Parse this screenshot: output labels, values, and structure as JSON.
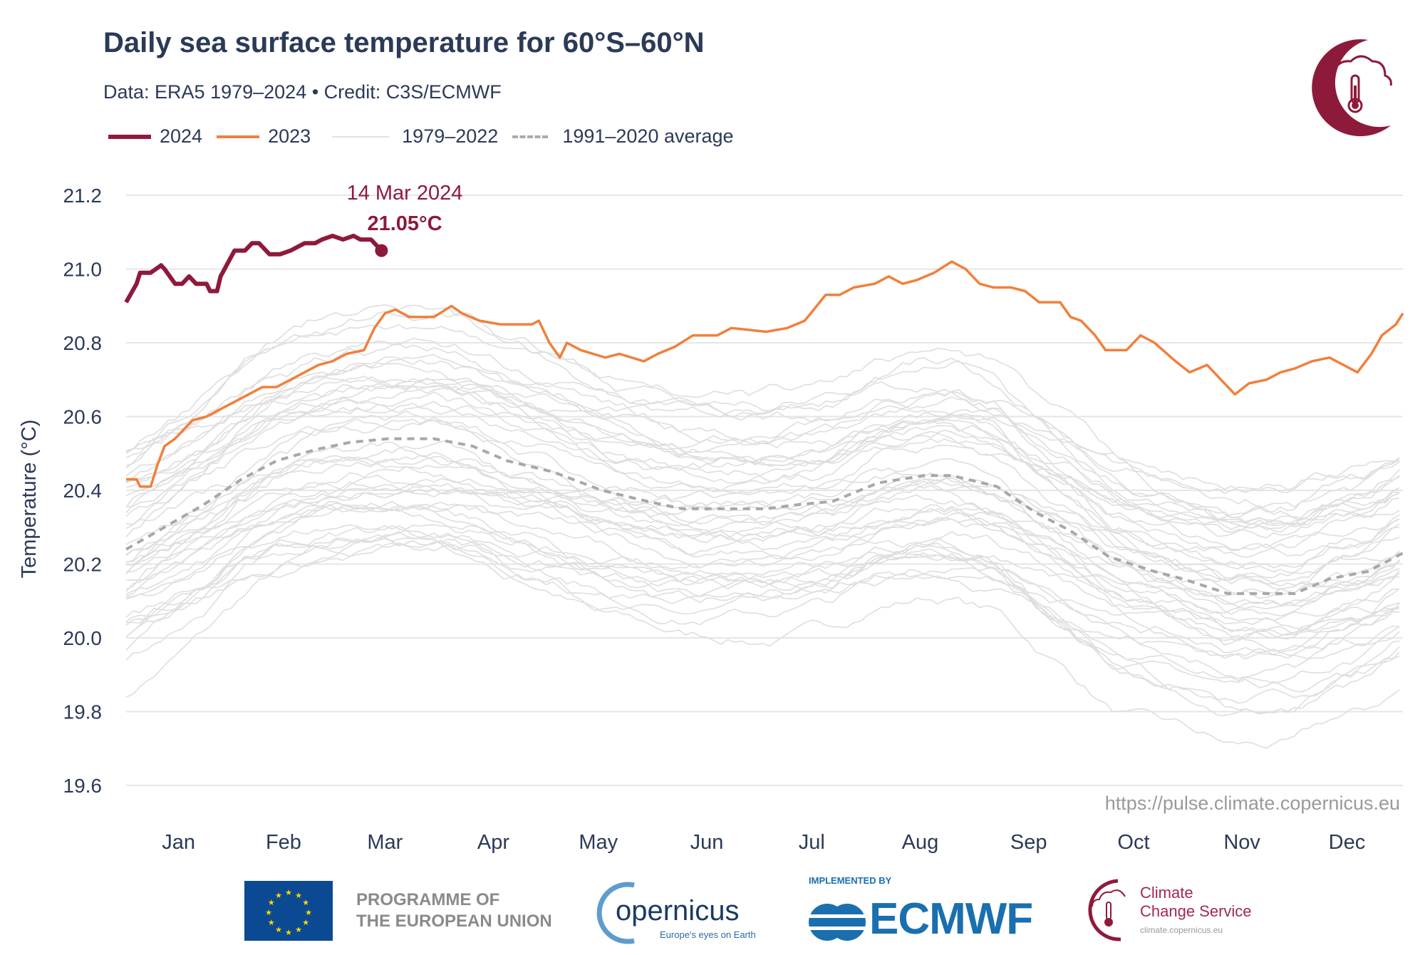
{
  "header": {
    "title": "Daily sea surface temperature for 60°S–60°N",
    "subtitle": "Data: ERA5 1979–2024  •  Credit: C3S/ECMWF",
    "url": "https://pulse.climate.copernicus.eu"
  },
  "colors": {
    "y2024": "#8e1a3b",
    "y2023": "#f0803c",
    "background": "#dedede",
    "average": "#a8a8a8",
    "text": "#2b3a57"
  },
  "logos": {
    "eu_line1": "PROGRAMME OF",
    "eu_line2": "THE EUROPEAN UNION",
    "copernicus": "opernicus",
    "copernicus_tag": "Europe's eyes on Earth",
    "ecmwf_pre": "IMPLEMENTED BY",
    "ecmwf": "ECMWF",
    "c3s_line1": "Climate",
    "c3s_line2": "Change Service",
    "c3s_url": "climate.copernicus.eu"
  },
  "chart_data": {
    "type": "line",
    "title": "Daily sea surface temperature for 60°S–60°N",
    "xlabel": "",
    "ylabel": "Temperature (°C)",
    "xlim": [
      1,
      366
    ],
    "ylim": [
      19.6,
      21.2
    ],
    "yticks": [
      "19.6",
      "19.8",
      "20.0",
      "20.2",
      "20.4",
      "20.6",
      "20.8",
      "21.0",
      "21.2"
    ],
    "ytick_values": [
      19.6,
      19.8,
      20.0,
      20.2,
      20.4,
      20.6,
      20.8,
      21.0,
      21.2
    ],
    "xticks": [
      "Jan",
      "Feb",
      "Mar",
      "Apr",
      "May",
      "Jun",
      "Jul",
      "Aug",
      "Sep",
      "Oct",
      "Nov",
      "Dec"
    ],
    "xtick_days": [
      16,
      46,
      75,
      106,
      136,
      167,
      197,
      228,
      259,
      289,
      320,
      350
    ],
    "grid": true,
    "legend": [
      "2024",
      "2023",
      "1979–2022",
      "1991–2020 average"
    ],
    "annotation": {
      "date": "14 Mar 2024",
      "value_label": "21.05°C",
      "day": 74,
      "value": 21.05
    },
    "series": [
      {
        "name": "2024",
        "points": [
          [
            1,
            20.91
          ],
          [
            4,
            20.96
          ],
          [
            5,
            20.99
          ],
          [
            8,
            20.99
          ],
          [
            11,
            21.01
          ],
          [
            12,
            21.0
          ],
          [
            15,
            20.96
          ],
          [
            17,
            20.96
          ],
          [
            19,
            20.98
          ],
          [
            21,
            20.96
          ],
          [
            24,
            20.96
          ],
          [
            25,
            20.94
          ],
          [
            27,
            20.94
          ],
          [
            28,
            20.98
          ],
          [
            32,
            21.05
          ],
          [
            35,
            21.05
          ],
          [
            37,
            21.07
          ],
          [
            39,
            21.07
          ],
          [
            42,
            21.04
          ],
          [
            45,
            21.04
          ],
          [
            48,
            21.05
          ],
          [
            52,
            21.07
          ],
          [
            55,
            21.07
          ],
          [
            57,
            21.08
          ],
          [
            60,
            21.09
          ],
          [
            63,
            21.08
          ],
          [
            66,
            21.09
          ],
          [
            68,
            21.08
          ],
          [
            71,
            21.08
          ],
          [
            73,
            21.06
          ],
          [
            74,
            21.05
          ]
        ]
      },
      {
        "name": "2023",
        "points": [
          [
            1,
            20.43
          ],
          [
            4,
            20.43
          ],
          [
            5,
            20.41
          ],
          [
            8,
            20.41
          ],
          [
            10,
            20.47
          ],
          [
            12,
            20.52
          ],
          [
            15,
            20.54
          ],
          [
            18,
            20.57
          ],
          [
            20,
            20.59
          ],
          [
            24,
            20.6
          ],
          [
            28,
            20.62
          ],
          [
            32,
            20.64
          ],
          [
            36,
            20.66
          ],
          [
            40,
            20.68
          ],
          [
            44,
            20.68
          ],
          [
            48,
            20.7
          ],
          [
            52,
            20.72
          ],
          [
            56,
            20.74
          ],
          [
            60,
            20.75
          ],
          [
            64,
            20.77
          ],
          [
            69,
            20.78
          ],
          [
            72,
            20.84
          ],
          [
            75,
            20.88
          ],
          [
            78,
            20.89
          ],
          [
            82,
            20.87
          ],
          [
            89,
            20.87
          ],
          [
            94,
            20.9
          ],
          [
            97,
            20.88
          ],
          [
            102,
            20.86
          ],
          [
            108,
            20.85
          ],
          [
            113,
            20.85
          ],
          [
            117,
            20.85
          ],
          [
            119,
            20.86
          ],
          [
            122,
            20.8
          ],
          [
            125,
            20.76
          ],
          [
            127,
            20.8
          ],
          [
            131,
            20.78
          ],
          [
            138,
            20.76
          ],
          [
            142,
            20.77
          ],
          [
            149,
            20.75
          ],
          [
            153,
            20.77
          ],
          [
            158,
            20.79
          ],
          [
            163,
            20.82
          ],
          [
            170,
            20.82
          ],
          [
            174,
            20.84
          ],
          [
            184,
            20.83
          ],
          [
            190,
            20.84
          ],
          [
            195,
            20.86
          ],
          [
            201,
            20.93
          ],
          [
            205,
            20.93
          ],
          [
            209,
            20.95
          ],
          [
            215,
            20.96
          ],
          [
            219,
            20.98
          ],
          [
            223,
            20.96
          ],
          [
            227,
            20.97
          ],
          [
            232,
            20.99
          ],
          [
            237,
            21.02
          ],
          [
            241,
            21.0
          ],
          [
            245,
            20.96
          ],
          [
            249,
            20.95
          ],
          [
            254,
            20.95
          ],
          [
            258,
            20.94
          ],
          [
            262,
            20.91
          ],
          [
            268,
            20.91
          ],
          [
            271,
            20.87
          ],
          [
            274,
            20.86
          ],
          [
            278,
            20.82
          ],
          [
            281,
            20.78
          ],
          [
            287,
            20.78
          ],
          [
            291,
            20.82
          ],
          [
            295,
            20.8
          ],
          [
            301,
            20.75
          ],
          [
            305,
            20.72
          ],
          [
            310,
            20.74
          ],
          [
            314,
            20.7
          ],
          [
            318,
            20.66
          ],
          [
            322,
            20.69
          ],
          [
            327,
            20.7
          ],
          [
            331,
            20.72
          ],
          [
            335,
            20.73
          ],
          [
            340,
            20.75
          ],
          [
            345,
            20.76
          ],
          [
            349,
            20.74
          ],
          [
            353,
            20.72
          ],
          [
            357,
            20.77
          ],
          [
            360,
            20.82
          ],
          [
            364,
            20.85
          ],
          [
            366,
            20.88
          ]
        ]
      },
      {
        "name": "1991–2020 average",
        "points": [
          [
            1,
            20.24
          ],
          [
            12,
            20.3
          ],
          [
            23,
            20.36
          ],
          [
            34,
            20.43
          ],
          [
            44,
            20.48
          ],
          [
            55,
            20.51
          ],
          [
            65,
            20.53
          ],
          [
            76,
            20.54
          ],
          [
            89,
            20.54
          ],
          [
            100,
            20.52
          ],
          [
            110,
            20.48
          ],
          [
            123,
            20.45
          ],
          [
            137,
            20.4
          ],
          [
            150,
            20.37
          ],
          [
            160,
            20.35
          ],
          [
            184,
            20.35
          ],
          [
            192,
            20.36
          ],
          [
            203,
            20.37
          ],
          [
            216,
            20.42
          ],
          [
            229,
            20.44
          ],
          [
            237,
            20.44
          ],
          [
            250,
            20.41
          ],
          [
            261,
            20.34
          ],
          [
            271,
            20.29
          ],
          [
            282,
            20.22
          ],
          [
            295,
            20.18
          ],
          [
            303,
            20.16
          ],
          [
            316,
            20.12
          ],
          [
            335,
            20.12
          ],
          [
            345,
            20.16
          ],
          [
            356,
            20.18
          ],
          [
            366,
            20.23
          ]
        ]
      }
    ],
    "background_years": {
      "name": "1979–2022",
      "first_year": 1979,
      "last_year": 2022,
      "approx_offset_from_average_first": -0.3,
      "approx_offset_from_average_last": 0.3
    }
  }
}
